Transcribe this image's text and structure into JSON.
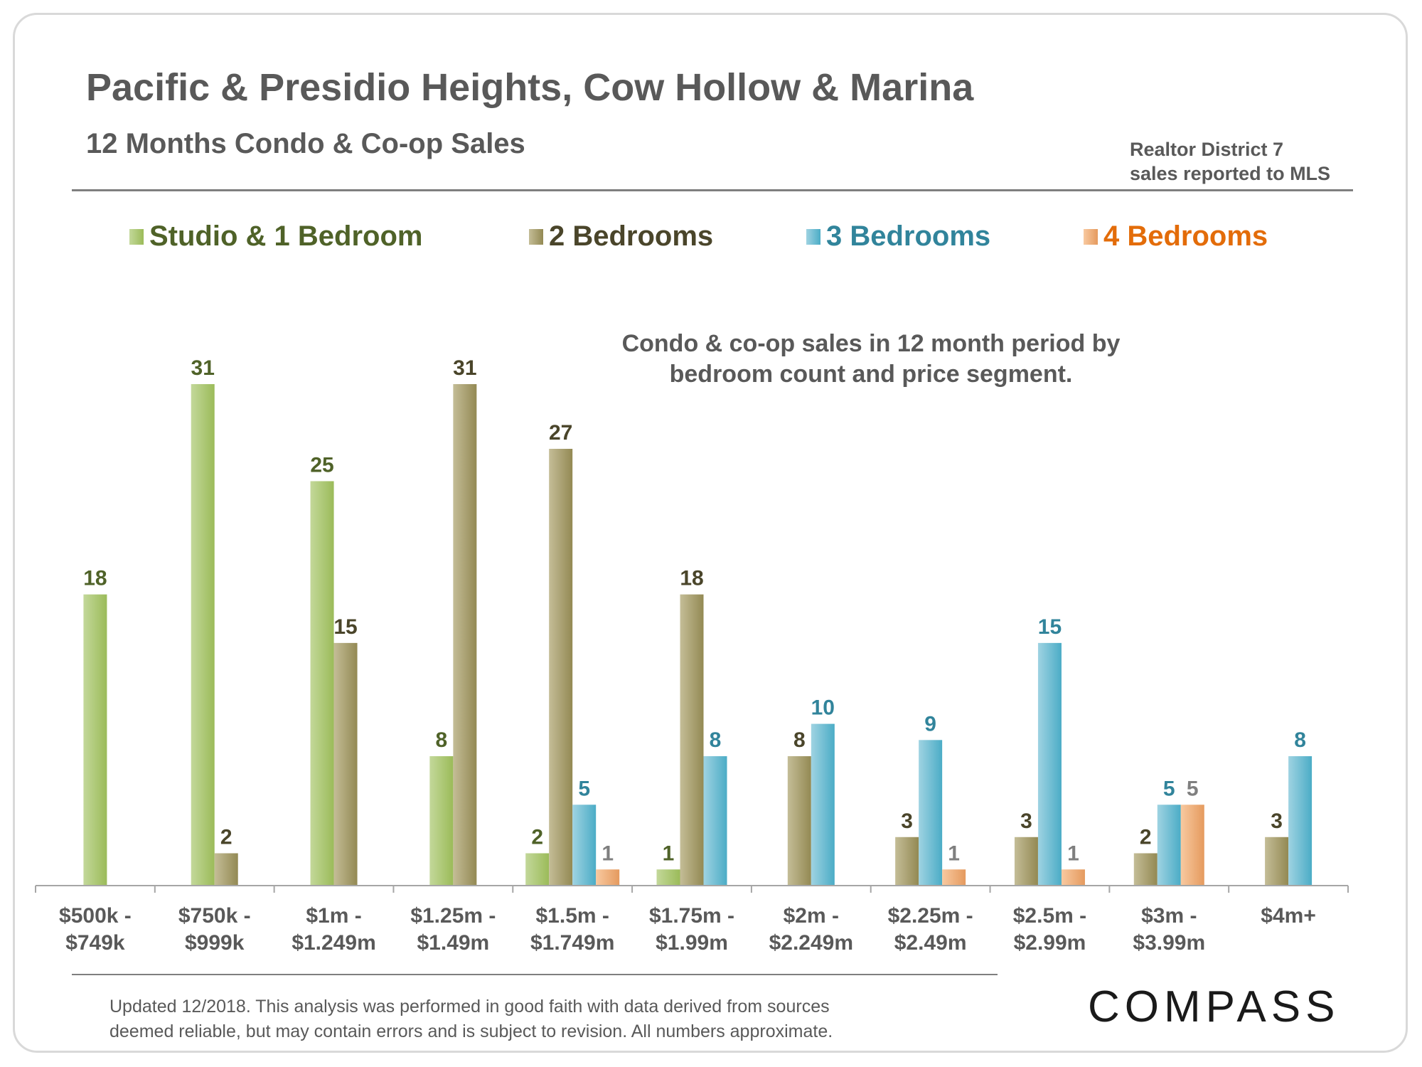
{
  "header": {
    "title": "Pacific & Presidio Heights, Cow Hollow & Marina",
    "subtitle": "12 Months Condo & Co-op Sales",
    "source_line1": "Realtor District 7",
    "source_line2": "sales reported to MLS"
  },
  "annotation": {
    "line1": "Condo & co-op sales in 12 month period by",
    "line2": "bedroom count and price segment."
  },
  "footer": {
    "line1": "Updated 12/2018. This analysis was performed in good faith with data derived from sources",
    "line2": "deemed reliable, but may contain errors and is subject to revision. All numbers approximate.",
    "logo": "COMPASS"
  },
  "chart_data": {
    "type": "bar",
    "title": "Pacific & Presidio Heights, Cow Hollow & Marina",
    "subtitle": "12 Months Condo & Co-op Sales",
    "xlabel": "",
    "ylabel": "",
    "ylim": [
      0,
      31
    ],
    "grid": false,
    "legend_position": "top",
    "categories": [
      [
        "$500k -",
        "$749k"
      ],
      [
        "$750k -",
        "$999k"
      ],
      [
        "$1m -",
        "$1.249m"
      ],
      [
        "$1.25m -",
        "$1.49m"
      ],
      [
        "$1.5m -",
        "$1.749m"
      ],
      [
        "$1.75m -",
        "$1.99m"
      ],
      [
        "$2m -",
        "$2.249m"
      ],
      [
        "$2.25m -",
        "$2.49m"
      ],
      [
        "$2.5m -",
        "$2.99m"
      ],
      [
        "$3m -",
        "$3.99m"
      ],
      [
        "$4m+"
      ]
    ],
    "series": [
      {
        "name": "Studio & 1 Bedroom",
        "color": "#9bbb59",
        "light": "#c3d89a",
        "label_color": "#4f6228",
        "values": [
          18,
          31,
          25,
          8,
          2,
          1,
          null,
          null,
          null,
          null,
          null
        ]
      },
      {
        "name": "2 Bedrooms",
        "color": "#938953",
        "light": "#c4bd97",
        "label_color": "#4a452a",
        "values": [
          null,
          2,
          15,
          31,
          27,
          18,
          8,
          3,
          3,
          2,
          3
        ]
      },
      {
        "name": "3 Bedrooms",
        "color": "#4bacc6",
        "light": "#9fd3e2",
        "label_color": "#31849b",
        "values": [
          null,
          null,
          null,
          null,
          5,
          8,
          10,
          9,
          15,
          5,
          8
        ]
      },
      {
        "name": "4 Bedrooms",
        "color": "#e59a5e",
        "light": "#f8c9a0",
        "label_color": "#e36c09",
        "values": [
          null,
          null,
          null,
          null,
          1,
          null,
          null,
          1,
          1,
          5,
          null
        ]
      }
    ],
    "data_label_colors": {
      "4 Bedrooms": "#7f7f7f"
    }
  }
}
